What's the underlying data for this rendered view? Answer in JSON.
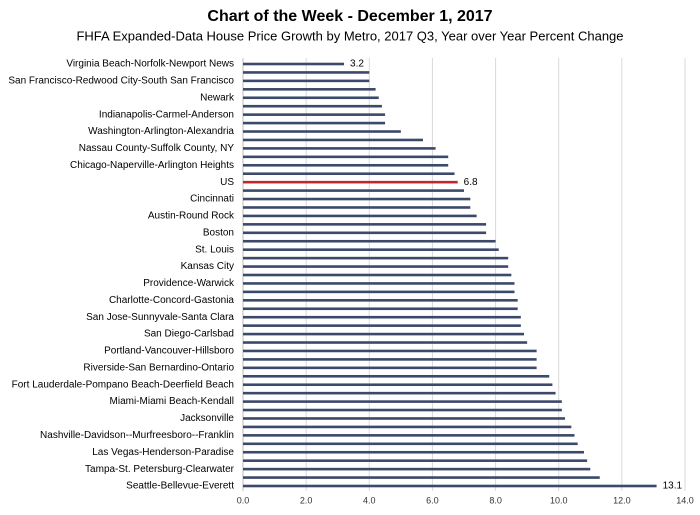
{
  "chart_data": {
    "type": "barh",
    "title": "Chart of the Week - December 1, 2017",
    "subtitle": "FHFA Expanded-Data House Price Growth by Metro, 2017 Q3, Year over Year Percent Change",
    "categories": [
      "Virginia Beach-Norfolk-Newport News",
      null,
      "San Francisco-Redwood City-South San Francisco",
      null,
      "Newark",
      null,
      "Indianapolis-Carmel-Anderson",
      null,
      "Washington-Arlington-Alexandria",
      null,
      "Nassau County-Suffolk County, NY",
      null,
      "Chicago-Naperville-Arlington Heights",
      null,
      "US",
      null,
      "Cincinnati",
      null,
      "Austin-Round Rock",
      null,
      "Boston",
      null,
      "St. Louis",
      null,
      "Kansas City",
      null,
      "Providence-Warwick",
      null,
      "Charlotte-Concord-Gastonia",
      null,
      "San Jose-Sunnyvale-Santa Clara",
      null,
      "San Diego-Carlsbad",
      null,
      "Portland-Vancouver-Hillsboro",
      null,
      "Riverside-San Bernardino-Ontario",
      null,
      "Fort Lauderdale-Pompano Beach-Deerfield Beach",
      null,
      "Miami-Miami Beach-Kendall",
      null,
      "Jacksonville",
      null,
      "Nashville-Davidson--Murfreesboro--Franklin",
      null,
      "Las Vegas-Henderson-Paradise",
      null,
      "Tampa-St. Petersburg-Clearwater",
      null,
      "Seattle-Bellevue-Everett"
    ],
    "values": [
      3.2,
      4.0,
      4.0,
      4.2,
      4.3,
      4.4,
      4.5,
      4.5,
      5.0,
      5.7,
      6.1,
      6.5,
      6.5,
      6.7,
      6.8,
      7.0,
      7.2,
      7.2,
      7.4,
      7.7,
      7.7,
      8.0,
      8.1,
      8.4,
      8.4,
      8.5,
      8.6,
      8.6,
      8.7,
      8.7,
      8.8,
      8.8,
      8.9,
      9.0,
      9.3,
      9.3,
      9.3,
      9.7,
      9.8,
      9.9,
      10.1,
      10.1,
      10.2,
      10.4,
      10.5,
      10.6,
      10.8,
      10.9,
      11.0,
      11.3,
      13.1
    ],
    "color": "#3b4a6b",
    "highlight_category": "US",
    "highlight_color": "#c0282d",
    "xlim": [
      0,
      14
    ],
    "xticks": [
      {
        "value": 0,
        "label": "0.0"
      },
      {
        "value": 2,
        "label": "2.0"
      },
      {
        "value": 4,
        "label": "4.0"
      },
      {
        "value": 6,
        "label": "6.0"
      },
      {
        "value": 8,
        "label": "8.0"
      },
      {
        "value": 10,
        "label": "10.0"
      },
      {
        "value": 12,
        "label": "12.0"
      },
      {
        "value": 14,
        "label": "14.0"
      }
    ],
    "grid": true
  }
}
